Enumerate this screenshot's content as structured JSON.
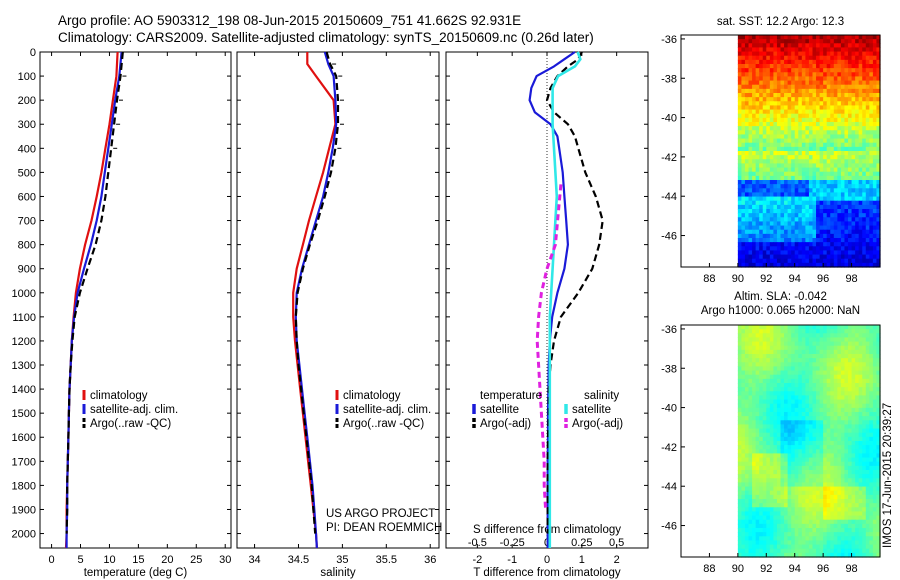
{
  "figure": {
    "title_line1": "Argo profile: AO 5903312_198 08-Jun-2015 20150609_751 41.662S 92.931E",
    "title_line2": "Climatology: CARS2009. Satellite-adjusted climatology: synTS_20150609.nc (0.26d later)",
    "credit": "US ARGO PROJECT",
    "pi": "PI: DEAN ROEMMICH",
    "stamp": "IMOS 17-Jun-2015 20:39:27"
  },
  "colors": {
    "climatology": "#e01010",
    "satellite": "#1a1ad8",
    "argo": "#000000",
    "cyan": "#30e8e8",
    "magenta": "#e020e0"
  },
  "chart_data": [
    {
      "type": "line",
      "id": "temperature",
      "xlabel": "temperature (deg C)",
      "xlim": [
        -2,
        31
      ],
      "xticks": [
        0,
        5,
        10,
        15,
        20,
        25,
        30
      ],
      "ylim": [
        2060,
        0
      ],
      "yticks": [
        0,
        100,
        200,
        300,
        400,
        500,
        600,
        700,
        800,
        900,
        1000,
        1100,
        1200,
        1300,
        1400,
        1500,
        1600,
        1700,
        1800,
        1900,
        2000
      ],
      "legend": [
        "climatology",
        "satellite-adj. clim.",
        "Argo(..raw -QC)"
      ],
      "series": [
        {
          "name": "climatology",
          "style": "red",
          "depth": [
            0,
            100,
            200,
            300,
            400,
            500,
            600,
            700,
            800,
            900,
            1000,
            1100,
            1200,
            1300,
            1400,
            1500,
            1600,
            1700,
            1800,
            1900,
            2000,
            2060
          ],
          "values": [
            11.4,
            11.2,
            10.6,
            10.0,
            9.3,
            8.6,
            7.8,
            6.9,
            5.8,
            4.9,
            4.2,
            3.8,
            3.5,
            3.3,
            3.1,
            3.0,
            2.9,
            2.8,
            2.7,
            2.6,
            2.6,
            2.5
          ]
        },
        {
          "name": "satellite-adj. clim.",
          "style": "blue",
          "depth": [
            0,
            100,
            200,
            300,
            400,
            500,
            600,
            700,
            800,
            900,
            1000,
            1100,
            1200,
            1300,
            1400,
            1500,
            1600,
            1700,
            1800,
            1900,
            2000,
            2060
          ],
          "values": [
            12.1,
            11.7,
            11.0,
            10.4,
            9.8,
            9.2,
            8.6,
            7.8,
            6.8,
            5.6,
            4.5,
            3.9,
            3.5,
            3.3,
            3.1,
            3.0,
            2.9,
            2.8,
            2.7,
            2.7,
            2.6,
            2.6
          ]
        },
        {
          "name": "Argo(..raw -QC)",
          "style": "black-dash",
          "depth": [
            0,
            100,
            200,
            300,
            400,
            500,
            600,
            700,
            800,
            900,
            1000,
            1100,
            1200,
            1300,
            1400,
            1500,
            1600,
            1700,
            1800,
            1900,
            2000
          ],
          "values": [
            12.3,
            11.9,
            11.3,
            10.8,
            10.3,
            9.8,
            9.3,
            8.6,
            7.6,
            6.2,
            4.9,
            4.0,
            3.6,
            3.3,
            3.1,
            3.0,
            2.9,
            2.8,
            2.7,
            2.7,
            2.6
          ]
        }
      ]
    },
    {
      "type": "line",
      "id": "salinity",
      "xlabel": "salinity",
      "xlim": [
        33.8,
        36.1
      ],
      "xticks": [
        34,
        34.5,
        35,
        35.5,
        36
      ],
      "ylim": [
        2060,
        0
      ],
      "legend": [
        "climatology",
        "satellite-adj. clim.",
        "Argo(..raw -QC)"
      ],
      "series": [
        {
          "name": "climatology",
          "style": "red",
          "depth": [
            0,
            50,
            100,
            200,
            300,
            400,
            500,
            600,
            700,
            800,
            900,
            1000,
            1100,
            1200,
            1300,
            1400,
            1500,
            1600,
            1700,
            1800,
            1900,
            2000,
            2060
          ],
          "values": [
            34.6,
            34.6,
            34.7,
            34.9,
            34.92,
            34.85,
            34.78,
            34.7,
            34.62,
            34.55,
            34.48,
            34.44,
            34.44,
            34.46,
            34.49,
            34.52,
            34.55,
            34.58,
            34.61,
            34.64,
            34.67,
            34.7,
            34.71
          ]
        },
        {
          "name": "satellite-adj. clim.",
          "style": "blue",
          "depth": [
            0,
            50,
            100,
            200,
            300,
            400,
            500,
            600,
            700,
            800,
            900,
            1000,
            1100,
            1200,
            1300,
            1400,
            1500,
            1600,
            1700,
            1800,
            1900,
            2000,
            2060
          ],
          "values": [
            34.8,
            34.84,
            34.9,
            34.92,
            34.93,
            34.89,
            34.84,
            34.78,
            34.7,
            34.62,
            34.54,
            34.48,
            34.47,
            34.48,
            34.51,
            34.54,
            34.57,
            34.6,
            34.63,
            34.66,
            34.68,
            34.7,
            34.71
          ]
        },
        {
          "name": "Argo(..raw -QC)",
          "style": "black-dash",
          "depth": [
            0,
            50,
            100,
            200,
            300,
            400,
            500,
            600,
            700,
            800,
            900,
            1000,
            1100,
            1200,
            1300,
            1400,
            1500,
            1600,
            1700,
            1800,
            1900,
            2000
          ],
          "values": [
            34.82,
            34.86,
            34.93,
            34.95,
            34.95,
            34.92,
            34.87,
            34.8,
            34.72,
            34.63,
            34.55,
            34.49,
            34.47,
            34.48,
            34.5,
            34.53,
            34.56,
            34.59,
            34.62,
            34.65,
            34.67,
            34.69
          ]
        }
      ]
    },
    {
      "type": "line",
      "id": "difference",
      "xlabel": "T difference from climatology",
      "xlabel_top": "S difference from climatology",
      "xlim": [
        -2.9,
        2.9
      ],
      "xticks": [
        -2,
        -1,
        0,
        1,
        2
      ],
      "xticks_top": [
        -0.5,
        -0.25,
        0,
        0.25,
        0.5
      ],
      "ylim": [
        2060,
        0
      ],
      "legend_headers": [
        "temperature",
        "salinity"
      ],
      "legend": [
        "satellite",
        "Argo(-adj)",
        "satellite",
        "Argo(-adj)"
      ],
      "series": [
        {
          "name": "satellite",
          "quantity": "temperature",
          "style": "blue",
          "depth": [
            0,
            30,
            60,
            100,
            150,
            200,
            250,
            300,
            350,
            400,
            500,
            600,
            700,
            800,
            900,
            1000,
            1100,
            1200,
            1300,
            1400,
            1500,
            1600,
            1700,
            1800,
            1900,
            2000,
            2060
          ],
          "values": [
            0.8,
            0.5,
            0.2,
            -0.3,
            -0.45,
            -0.5,
            -0.35,
            0.1,
            0.3,
            0.35,
            0.45,
            0.5,
            0.55,
            0.6,
            0.5,
            0.3,
            0.15,
            0.08,
            0.05,
            0.04,
            0.03,
            0.03,
            0.02,
            0.02,
            0.02,
            0.02,
            0.02
          ]
        },
        {
          "name": "Argo(-adj)",
          "quantity": "temperature",
          "style": "black-dash",
          "depth": [
            0,
            30,
            60,
            100,
            150,
            200,
            250,
            300,
            350,
            400,
            500,
            600,
            700,
            800,
            900,
            1000,
            1100,
            1200,
            1300,
            1400,
            1500,
            1600,
            1700,
            1800,
            1900,
            2000
          ],
          "values": [
            1.0,
            0.9,
            0.6,
            0.3,
            0.1,
            0.0,
            0.2,
            0.6,
            0.8,
            0.9,
            1.1,
            1.4,
            1.6,
            1.5,
            1.3,
            0.9,
            0.4,
            0.2,
            0.1,
            0.05,
            0.05,
            0.03,
            0.02,
            0.02,
            0.02,
            0.02
          ]
        },
        {
          "name": "satellite",
          "quantity": "salinity",
          "style": "cyan",
          "depth": [
            0,
            30,
            60,
            100,
            150,
            200,
            300,
            400,
            500,
            600,
            700,
            800,
            900,
            1000,
            1100,
            1200,
            1300,
            1400,
            1500,
            1600,
            1700,
            1800,
            1900,
            2000,
            2060
          ],
          "values": [
            0.22,
            0.24,
            0.2,
            0.08,
            0.04,
            0.04,
            0.04,
            0.05,
            0.06,
            0.07,
            0.06,
            0.05,
            0.04,
            0.03,
            0.02,
            0.02,
            0.02,
            0.02,
            0.02,
            0.02,
            0.02,
            0.02,
            0.02,
            0.02,
            0.02
          ]
        },
        {
          "name": "Argo(-adj)",
          "quantity": "salinity",
          "style": "magenta-dash",
          "depth": [
            550,
            800,
            900,
            1000,
            1100,
            1200,
            1300,
            1400,
            1500,
            1600,
            1700,
            1800,
            1900
          ],
          "values": [
            0.1,
            0.06,
            0.0,
            -0.04,
            -0.06,
            -0.07,
            -0.06,
            -0.05,
            -0.04,
            -0.03,
            -0.02,
            -0.02,
            -0.01
          ]
        }
      ]
    },
    {
      "type": "heatmap",
      "id": "sst_map",
      "title": "sat. SST: 12.2  Argo: 12.3",
      "xlim": [
        86,
        100
      ],
      "ylim": [
        -47.6,
        -35.8
      ],
      "xticks": [
        88,
        90,
        92,
        94,
        96,
        98
      ],
      "yticks": [
        -36,
        -38,
        -40,
        -42,
        -44,
        -46
      ],
      "data_xrange": [
        90,
        100
      ]
    },
    {
      "type": "heatmap",
      "id": "sla_map",
      "title_line1": "Altim. SLA: -0.042",
      "title_line2": "Argo h1000: 0.065 h2000: NaN",
      "xlim": [
        86,
        100
      ],
      "ylim": [
        -47.6,
        -35.8
      ],
      "xticks": [
        88,
        90,
        92,
        94,
        96,
        98
      ],
      "yticks": [
        -36,
        -38,
        -40,
        -42,
        -44,
        -46
      ],
      "data_xrange": [
        90,
        100
      ]
    }
  ]
}
